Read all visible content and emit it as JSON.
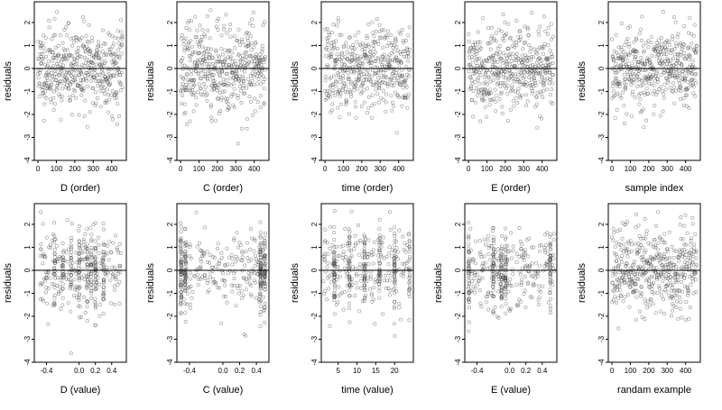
{
  "chart_data": [
    {
      "type": "scatter",
      "xlabel": "D (order)",
      "ylabel": "residuals",
      "xlim": [
        -20,
        480
      ],
      "ylim": [
        -4,
        2.9
      ],
      "xticks": [
        0,
        100,
        200,
        300,
        400
      ],
      "xtick_labels": [
        "0",
        "100",
        "200",
        "300",
        "400"
      ],
      "yticks": [
        -4,
        -3,
        -2,
        -1,
        0,
        1,
        2
      ],
      "ytick_labels": [
        "-4",
        "-3",
        "-2",
        "-1",
        "0",
        "1",
        "2"
      ],
      "reference_line_y": 0,
      "gen": {
        "mode": "order",
        "seed": 11,
        "n": 460,
        "xmin": 0,
        "xmax": 460
      }
    },
    {
      "type": "scatter",
      "xlabel": "C (order)",
      "ylabel": "residuals",
      "xlim": [
        -20,
        480
      ],
      "ylim": [
        -4,
        2.9
      ],
      "xticks": [
        0,
        100,
        200,
        300,
        400
      ],
      "xtick_labels": [
        "0",
        "100",
        "200",
        "300",
        "400"
      ],
      "yticks": [
        -4,
        -3,
        -2,
        -1,
        0,
        1,
        2
      ],
      "ytick_labels": [
        "-4",
        "-3",
        "-2",
        "-1",
        "0",
        "1",
        "2"
      ],
      "reference_line_y": 0,
      "gen": {
        "mode": "order",
        "seed": 23,
        "n": 460,
        "xmin": 0,
        "xmax": 460
      }
    },
    {
      "type": "scatter",
      "xlabel": "time (order)",
      "ylabel": "residuals",
      "xlim": [
        -20,
        480
      ],
      "ylim": [
        -4,
        2.9
      ],
      "xticks": [
        0,
        100,
        200,
        300,
        400
      ],
      "xtick_labels": [
        "0",
        "100",
        "200",
        "300",
        "400"
      ],
      "yticks": [
        -4,
        -3,
        -2,
        -1,
        0,
        1,
        2
      ],
      "ytick_labels": [
        "-4",
        "-3",
        "-2",
        "-1",
        "0",
        "1",
        "2"
      ],
      "reference_line_y": 0,
      "gen": {
        "mode": "order",
        "seed": 37,
        "n": 460,
        "xmin": 0,
        "xmax": 460
      }
    },
    {
      "type": "scatter",
      "xlabel": "E (order)",
      "ylabel": "residuals",
      "xlim": [
        -20,
        480
      ],
      "ylim": [
        -4,
        2.9
      ],
      "xticks": [
        0,
        100,
        200,
        300,
        400
      ],
      "xtick_labels": [
        "0",
        "100",
        "200",
        "300",
        "400"
      ],
      "yticks": [
        -4,
        -3,
        -2,
        -1,
        0,
        1,
        2
      ],
      "ytick_labels": [
        "-4",
        "-3",
        "-2",
        "-1",
        "0",
        "1",
        "2"
      ],
      "reference_line_y": 0,
      "gen": {
        "mode": "order",
        "seed": 41,
        "n": 460,
        "xmin": 0,
        "xmax": 460
      }
    },
    {
      "type": "scatter",
      "xlabel": "sample index",
      "ylabel": "residuals",
      "xlim": [
        -20,
        480
      ],
      "ylim": [
        -4,
        2.9
      ],
      "xticks": [
        0,
        100,
        200,
        300,
        400
      ],
      "xtick_labels": [
        "0",
        "100",
        "200",
        "300",
        "400"
      ],
      "yticks": [
        -4,
        -3,
        -2,
        -1,
        0,
        1,
        2
      ],
      "ytick_labels": [
        "-4",
        "-3",
        "-2",
        "-1",
        "0",
        "1",
        "2"
      ],
      "reference_line_y": 0,
      "gen": {
        "mode": "order",
        "seed": 53,
        "n": 460,
        "xmin": 0,
        "xmax": 460
      }
    },
    {
      "type": "scatter",
      "xlabel": "D (value)",
      "ylabel": "residuals",
      "xlim": [
        -0.55,
        0.58
      ],
      "ylim": [
        -4,
        2.9
      ],
      "xticks": [
        -0.4,
        0,
        0.2,
        0.4
      ],
      "xtick_labels": [
        "-0.4",
        "0.0",
        "0.2",
        "0.4"
      ],
      "yticks": [
        -4,
        -3,
        -2,
        -1,
        0,
        1,
        2
      ],
      "ytick_labels": [
        "-4",
        "-3",
        "-2",
        "-1",
        "0",
        "1",
        "2"
      ],
      "reference_line_y": 0,
      "gen": {
        "mode": "value",
        "seed": 61,
        "n": 420,
        "xmin": -0.5,
        "xmax": 0.52,
        "clusters": [
          -0.3,
          -0.2,
          -0.1,
          0.0,
          0.1,
          0.15,
          0.2,
          0.3
        ]
      }
    },
    {
      "type": "scatter",
      "xlabel": "C (value)",
      "ylabel": "residuals",
      "xlim": [
        -0.55,
        0.55
      ],
      "ylim": [
        -4,
        2.9
      ],
      "xticks": [
        -0.4,
        0,
        0.2,
        0.4
      ],
      "xtick_labels": [
        "-0.4",
        "0.0",
        "0.2",
        "0.4"
      ],
      "yticks": [
        -4,
        -3,
        -2,
        -1,
        0,
        1,
        2
      ],
      "ytick_labels": [
        "-4",
        "-3",
        "-2",
        "-1",
        "0",
        "1",
        "2"
      ],
      "reference_line_y": 0,
      "gen": {
        "mode": "value",
        "seed": 71,
        "n": 420,
        "xmin": -0.52,
        "xmax": 0.52,
        "clusters": [
          -0.5,
          -0.45,
          0.45,
          0.5
        ]
      }
    },
    {
      "type": "scatter",
      "xlabel": "time (value)",
      "ylabel": "residuals",
      "xlim": [
        0.5,
        25
      ],
      "ylim": [
        -4,
        2.9
      ],
      "xticks": [
        5,
        10,
        15,
        20
      ],
      "xtick_labels": [
        "5",
        "10",
        "15",
        "20"
      ],
      "yticks": [
        -4,
        -3,
        -2,
        -1,
        0,
        1,
        2
      ],
      "ytick_labels": [
        "-4",
        "-3",
        "-2",
        "-1",
        "0",
        "1",
        "2"
      ],
      "reference_line_y": 0,
      "gen": {
        "mode": "value",
        "seed": 83,
        "n": 420,
        "xmin": 1,
        "xmax": 24,
        "clusters": [
          4,
          8,
          12,
          16,
          20,
          24
        ]
      }
    },
    {
      "type": "scatter",
      "xlabel": "E (value)",
      "ylabel": "residuals",
      "xlim": [
        -0.55,
        0.58
      ],
      "ylim": [
        -4,
        2.9
      ],
      "xticks": [
        -0.4,
        0,
        0.2,
        0.4
      ],
      "xtick_labels": [
        "-0.4",
        "0.0",
        "0.2",
        "0.4"
      ],
      "yticks": [
        -4,
        -3,
        -2,
        -1,
        0,
        1,
        2
      ],
      "ytick_labels": [
        "-4",
        "-3",
        "-2",
        "-1",
        "0",
        "1",
        "2"
      ],
      "reference_line_y": 0,
      "gen": {
        "mode": "value",
        "seed": 97,
        "n": 420,
        "xmin": -0.5,
        "xmax": 0.55,
        "clusters": [
          -0.5,
          -0.2,
          -0.1,
          -0.05,
          0.5
        ]
      }
    },
    {
      "type": "scatter",
      "xlabel": "randam example",
      "ylabel": "residuals",
      "xlim": [
        -20,
        480
      ],
      "ylim": [
        -4,
        2.9
      ],
      "xticks": [
        0,
        100,
        200,
        300,
        400
      ],
      "xtick_labels": [
        "0",
        "100",
        "200",
        "300",
        "400"
      ],
      "yticks": [
        -4,
        -3,
        -2,
        -1,
        0,
        1,
        2
      ],
      "ytick_labels": [
        "-4",
        "-3",
        "-2",
        "-1",
        "0",
        "1",
        "2"
      ],
      "reference_line_y": 0,
      "gen": {
        "mode": "order",
        "seed": 107,
        "n": 460,
        "xmin": 0,
        "xmax": 460
      }
    }
  ]
}
